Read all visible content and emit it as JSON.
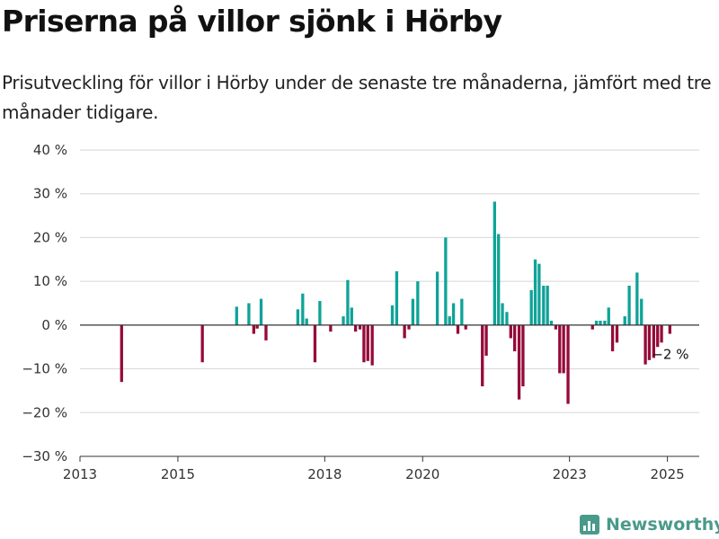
{
  "title": "Priserna på villor sjönk i Hörby",
  "subtitle": "Prisutveckling för villor i Hörby under de senaste tre månaderna, jämfört med tre månader tidigare.",
  "brand": "Newsworthy",
  "colors": {
    "positive": "#0fa398",
    "negative": "#950a3a",
    "brand": "#4a9a8c"
  },
  "chart_data": {
    "type": "bar",
    "y_ticks": [
      "40 %",
      "30 %",
      "20 %",
      "10 %",
      "0 %",
      "−10 %",
      "−20 %",
      "−30 %"
    ],
    "ylim": [
      -30,
      40
    ],
    "xlim": [
      2013,
      2025.65
    ],
    "x_ticks": [
      {
        "label": "2013",
        "value": 2013
      },
      {
        "label": "2015",
        "value": 2015
      },
      {
        "label": "2018",
        "value": 2018
      },
      {
        "label": "2020",
        "value": 2020
      },
      {
        "label": "2023",
        "value": 2023
      },
      {
        "label": "2025",
        "value": 2025
      }
    ],
    "annotation": "−2 %",
    "bars": [
      {
        "x": 2013.85,
        "y": -13
      },
      {
        "x": 2015.5,
        "y": -8.5
      },
      {
        "x": 2016.2,
        "y": 4.2
      },
      {
        "x": 2016.45,
        "y": 5
      },
      {
        "x": 2016.55,
        "y": -2
      },
      {
        "x": 2016.62,
        "y": -0.8
      },
      {
        "x": 2016.7,
        "y": 6
      },
      {
        "x": 2016.8,
        "y": -3.5
      },
      {
        "x": 2017.45,
        "y": 3.6
      },
      {
        "x": 2017.55,
        "y": 7.2
      },
      {
        "x": 2017.63,
        "y": 1.5
      },
      {
        "x": 2017.8,
        "y": -8.5
      },
      {
        "x": 2017.9,
        "y": 5.5
      },
      {
        "x": 2018.12,
        "y": -1.5
      },
      {
        "x": 2018.38,
        "y": 2
      },
      {
        "x": 2018.47,
        "y": 10.3
      },
      {
        "x": 2018.55,
        "y": 4
      },
      {
        "x": 2018.63,
        "y": -1.5
      },
      {
        "x": 2018.72,
        "y": -1
      },
      {
        "x": 2018.8,
        "y": -8.5
      },
      {
        "x": 2018.88,
        "y": -8.2
      },
      {
        "x": 2018.97,
        "y": -9.2
      },
      {
        "x": 2019.38,
        "y": 4.5
      },
      {
        "x": 2019.47,
        "y": 12.3
      },
      {
        "x": 2019.63,
        "y": -3
      },
      {
        "x": 2019.72,
        "y": -1
      },
      {
        "x": 2019.8,
        "y": 6
      },
      {
        "x": 2019.9,
        "y": 10
      },
      {
        "x": 2020.3,
        "y": 12.2
      },
      {
        "x": 2020.47,
        "y": 20
      },
      {
        "x": 2020.55,
        "y": 2
      },
      {
        "x": 2020.63,
        "y": 5
      },
      {
        "x": 2020.72,
        "y": -2
      },
      {
        "x": 2020.8,
        "y": 6
      },
      {
        "x": 2020.88,
        "y": -1
      },
      {
        "x": 2021.22,
        "y": -14
      },
      {
        "x": 2021.3,
        "y": -7
      },
      {
        "x": 2021.47,
        "y": 28.2
      },
      {
        "x": 2021.55,
        "y": 20.8
      },
      {
        "x": 2021.63,
        "y": 5
      },
      {
        "x": 2021.72,
        "y": 3
      },
      {
        "x": 2021.8,
        "y": -3
      },
      {
        "x": 2021.88,
        "y": -6
      },
      {
        "x": 2021.97,
        "y": -17
      },
      {
        "x": 2022.05,
        "y": -14
      },
      {
        "x": 2022.22,
        "y": 8
      },
      {
        "x": 2022.3,
        "y": 15
      },
      {
        "x": 2022.38,
        "y": 14
      },
      {
        "x": 2022.47,
        "y": 9
      },
      {
        "x": 2022.55,
        "y": 9
      },
      {
        "x": 2022.63,
        "y": 1
      },
      {
        "x": 2022.72,
        "y": -1
      },
      {
        "x": 2022.8,
        "y": -11
      },
      {
        "x": 2022.88,
        "y": -11
      },
      {
        "x": 2022.97,
        "y": -18
      },
      {
        "x": 2023.47,
        "y": -1
      },
      {
        "x": 2023.55,
        "y": 1
      },
      {
        "x": 2023.63,
        "y": 1
      },
      {
        "x": 2023.72,
        "y": 1
      },
      {
        "x": 2023.8,
        "y": 4
      },
      {
        "x": 2023.88,
        "y": -6
      },
      {
        "x": 2023.97,
        "y": -4
      },
      {
        "x": 2024.13,
        "y": 2
      },
      {
        "x": 2024.22,
        "y": 9
      },
      {
        "x": 2024.38,
        "y": 12
      },
      {
        "x": 2024.47,
        "y": 6
      },
      {
        "x": 2024.55,
        "y": -9
      },
      {
        "x": 2024.63,
        "y": -8
      },
      {
        "x": 2024.72,
        "y": -7.5
      },
      {
        "x": 2024.8,
        "y": -5
      },
      {
        "x": 2024.88,
        "y": -4
      },
      {
        "x": 2025.05,
        "y": -2
      }
    ]
  }
}
